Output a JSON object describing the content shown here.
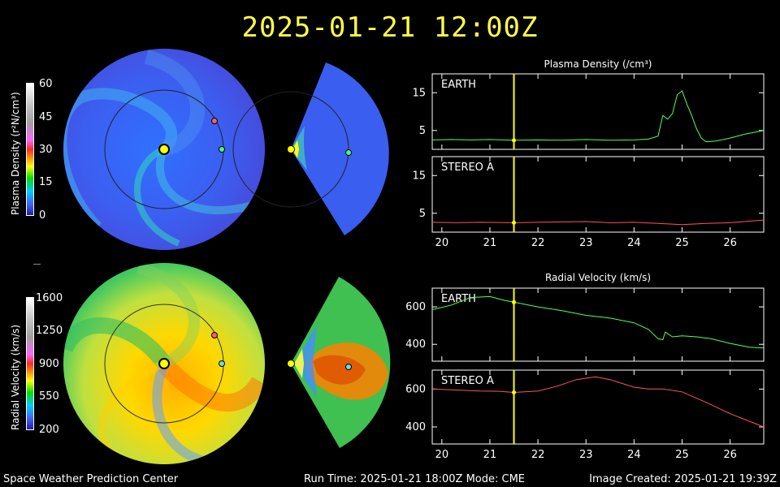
{
  "title": "2025-01-21 12:00Z",
  "colorbars": {
    "density": {
      "label": "Plasma Density (r²N/cm³)",
      "ticks": [
        "60",
        "45",
        "30",
        "15",
        "0"
      ]
    },
    "velocity": {
      "label": "Radial Velocity (km/s)",
      "ticks": [
        "1600",
        "1250",
        "900",
        "550",
        "200"
      ]
    }
  },
  "panels": {
    "density_title": "Plasma Density (/cm³)",
    "velocity_title": "Radial Velocity (km/s)"
  },
  "footer": {
    "left": "Space Weather Prediction Center",
    "center": "Run Time: 2025-01-21 18:00Z  Mode: CME",
    "right": "Image Created: 2025-01-21 19:39Z"
  },
  "colors": {
    "title": "#ffff44",
    "earth_series": "#55ff55",
    "stereo_series": "#ff5555",
    "current_time": "#ffff00"
  },
  "chart_data": [
    {
      "type": "line",
      "title": "Plasma Density (/cm³)",
      "panel": "EARTH",
      "x_ticks": [
        "20",
        "21",
        "22",
        "23",
        "24",
        "25",
        "26"
      ],
      "xlim": [
        19.8,
        26.7
      ],
      "y_ticks": [
        "15",
        "5"
      ],
      "ylim": [
        0,
        20
      ],
      "current_time": 21.5,
      "series": [
        {
          "name": "EARTH",
          "color": "#55ff55",
          "x": [
            19.8,
            20.2,
            20.6,
            21.0,
            21.5,
            22.0,
            22.5,
            23.0,
            23.5,
            24.0,
            24.3,
            24.5,
            24.6,
            24.7,
            24.8,
            24.9,
            25.0,
            25.1,
            25.2,
            25.3,
            25.4,
            25.5,
            25.7,
            26.0,
            26.3,
            26.7
          ],
          "y": [
            2.5,
            2.6,
            2.5,
            2.6,
            2.4,
            2.5,
            2.4,
            2.6,
            2.4,
            2.5,
            2.7,
            3.5,
            9,
            8,
            9.5,
            14.5,
            15.5,
            12,
            9,
            5.5,
            3,
            2,
            2.2,
            3,
            4,
            5
          ]
        }
      ]
    },
    {
      "type": "line",
      "panel": "STEREO A",
      "x_ticks": [
        "20",
        "21",
        "22",
        "23",
        "24",
        "25",
        "26"
      ],
      "xlim": [
        19.8,
        26.7
      ],
      "y_ticks": [
        "15",
        "5"
      ],
      "ylim": [
        0,
        20
      ],
      "current_time": 21.5,
      "series": [
        {
          "name": "STEREO A",
          "color": "#ff5555",
          "x": [
            19.8,
            20.3,
            20.8,
            21.5,
            22.0,
            22.5,
            23.0,
            23.5,
            24.0,
            24.5,
            25.0,
            25.5,
            26.0,
            26.7
          ],
          "y": [
            2.6,
            2.5,
            2.6,
            2.5,
            2.6,
            2.7,
            2.8,
            2.5,
            2.6,
            2.3,
            2.0,
            2.3,
            2.5,
            3.2
          ]
        }
      ]
    },
    {
      "type": "line",
      "title": "Radial Velocity (km/s)",
      "panel": "EARTH",
      "x_ticks": [
        "20",
        "21",
        "22",
        "23",
        "24",
        "25",
        "26"
      ],
      "xlim": [
        19.8,
        26.7
      ],
      "y_ticks": [
        "600",
        "400"
      ],
      "ylim": [
        310,
        700
      ],
      "current_time": 21.5,
      "series": [
        {
          "name": "EARTH",
          "color": "#55ff55",
          "x": [
            19.8,
            20.2,
            20.6,
            21.0,
            21.3,
            21.5,
            22.0,
            22.5,
            23.0,
            23.5,
            24.0,
            24.3,
            24.5,
            24.6,
            24.65,
            24.8,
            25.0,
            25.3,
            25.6,
            26.0,
            26.4,
            26.7
          ],
          "y": [
            585,
            610,
            650,
            655,
            635,
            625,
            600,
            580,
            555,
            540,
            515,
            480,
            430,
            425,
            465,
            440,
            445,
            440,
            430,
            405,
            385,
            380
          ]
        }
      ]
    },
    {
      "type": "line",
      "panel": "STEREO A",
      "x_ticks": [
        "20",
        "21",
        "22",
        "23",
        "24",
        "25",
        "26"
      ],
      "xlim": [
        19.8,
        26.7
      ],
      "y_ticks": [
        "600",
        "400"
      ],
      "ylim": [
        310,
        700
      ],
      "current_time": 21.5,
      "series": [
        {
          "name": "STEREO A",
          "color": "#ff5555",
          "x": [
            19.8,
            20.3,
            20.8,
            21.2,
            21.5,
            22.0,
            22.4,
            22.8,
            23.2,
            23.5,
            24.0,
            24.3,
            24.6,
            25.0,
            25.5,
            26.0,
            26.4,
            26.7
          ],
          "y": [
            600,
            595,
            590,
            588,
            582,
            590,
            615,
            650,
            665,
            650,
            610,
            600,
            600,
            585,
            530,
            470,
            430,
            400
          ]
        }
      ]
    }
  ]
}
